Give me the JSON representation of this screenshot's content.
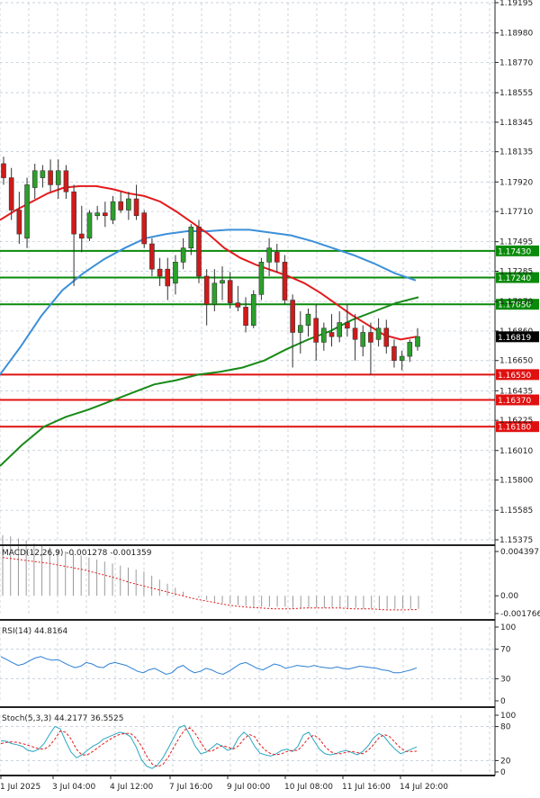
{
  "colors": {
    "bull": "#2ca02c",
    "bear": "#d11a1a",
    "ma_fast": "#e31a1c",
    "ma_mid": "#3c8fd8",
    "ma_slow": "#178a17",
    "level_green": "#0a8a0a",
    "level_red": "#e01010",
    "grid": "#b9c3cf",
    "macd_hist": "#9a9a9a",
    "macd_signal": "#e31a1c",
    "rsi": "#2a7fd4",
    "stoch_k": "#2aa6c0",
    "stoch_d": "#e31a1c"
  },
  "chart_data": [
    {
      "type": "candlestick",
      "panel": "price",
      "y_ticks": [
        "1.19195",
        "1.18980",
        "1.18770",
        "1.18555",
        "1.18345",
        "1.18135",
        "1.17920",
        "1.17710",
        "1.17495",
        "1.17285",
        "1.17070",
        "1.16860",
        "1.16650",
        "1.16435",
        "1.16225",
        "1.16010",
        "1.15800",
        "1.15585",
        "1.15375"
      ],
      "ylim": [
        1.15375,
        1.19195
      ],
      "x_ticks": [
        "1 Jul 2025",
        "3 Jul 04:00",
        "4 Jul 12:00",
        "7 Jul 16:00",
        "9 Jul 00:00",
        "10 Jul 08:00",
        "11 Jul 16:00",
        "14 Jul 20:00"
      ],
      "current_price": "1.16819",
      "levels": [
        {
          "label": "1.17430",
          "value": 1.1743,
          "kind": "resistance"
        },
        {
          "label": "1.17240",
          "value": 1.1724,
          "kind": "resistance"
        },
        {
          "label": "1.17050",
          "value": 1.1705,
          "kind": "resistance"
        },
        {
          "label": "1.16550",
          "value": 1.1655,
          "kind": "support"
        },
        {
          "label": "1.16370",
          "value": 1.1637,
          "kind": "support"
        },
        {
          "label": "1.16180",
          "value": 1.1618,
          "kind": "support"
        }
      ],
      "candles": [
        {
          "o": 1.1805,
          "h": 1.181,
          "l": 1.179,
          "c": 1.1795
        },
        {
          "o": 1.1795,
          "h": 1.1802,
          "l": 1.1765,
          "c": 1.1772
        },
        {
          "o": 1.1772,
          "h": 1.1785,
          "l": 1.1748,
          "c": 1.1755
        },
        {
          "o": 1.1752,
          "h": 1.1795,
          "l": 1.1745,
          "c": 1.179
        },
        {
          "o": 1.1788,
          "h": 1.1805,
          "l": 1.178,
          "c": 1.18
        },
        {
          "o": 1.1795,
          "h": 1.1804,
          "l": 1.1788,
          "c": 1.18
        },
        {
          "o": 1.18,
          "h": 1.1808,
          "l": 1.1785,
          "c": 1.179
        },
        {
          "o": 1.179,
          "h": 1.1808,
          "l": 1.178,
          "c": 1.18
        },
        {
          "o": 1.18,
          "h": 1.1804,
          "l": 1.178,
          "c": 1.1785
        },
        {
          "o": 1.1785,
          "h": 1.179,
          "l": 1.1718,
          "c": 1.1755
        },
        {
          "o": 1.1755,
          "h": 1.1775,
          "l": 1.1742,
          "c": 1.1752
        },
        {
          "o": 1.1752,
          "h": 1.1772,
          "l": 1.175,
          "c": 1.177
        },
        {
          "o": 1.1768,
          "h": 1.1775,
          "l": 1.1765,
          "c": 1.177
        },
        {
          "o": 1.177,
          "h": 1.1778,
          "l": 1.176,
          "c": 1.1768
        },
        {
          "o": 1.1765,
          "h": 1.1782,
          "l": 1.1762,
          "c": 1.1778
        },
        {
          "o": 1.1778,
          "h": 1.1785,
          "l": 1.177,
          "c": 1.1772
        },
        {
          "o": 1.1772,
          "h": 1.1785,
          "l": 1.1765,
          "c": 1.178
        },
        {
          "o": 1.178,
          "h": 1.179,
          "l": 1.1765,
          "c": 1.1768
        },
        {
          "o": 1.177,
          "h": 1.1772,
          "l": 1.1745,
          "c": 1.1748
        },
        {
          "o": 1.1748,
          "h": 1.1752,
          "l": 1.1725,
          "c": 1.173
        },
        {
          "o": 1.173,
          "h": 1.1738,
          "l": 1.1718,
          "c": 1.1725
        },
        {
          "o": 1.173,
          "h": 1.1738,
          "l": 1.1708,
          "c": 1.1718
        },
        {
          "o": 1.172,
          "h": 1.174,
          "l": 1.1712,
          "c": 1.1735
        },
        {
          "o": 1.1735,
          "h": 1.1752,
          "l": 1.173,
          "c": 1.1745
        },
        {
          "o": 1.1745,
          "h": 1.1762,
          "l": 1.174,
          "c": 1.176
        },
        {
          "o": 1.176,
          "h": 1.1765,
          "l": 1.172,
          "c": 1.1725
        },
        {
          "o": 1.1725,
          "h": 1.173,
          "l": 1.169,
          "c": 1.1705
        },
        {
          "o": 1.1705,
          "h": 1.173,
          "l": 1.17,
          "c": 1.172
        },
        {
          "o": 1.172,
          "h": 1.1732,
          "l": 1.1708,
          "c": 1.1722
        },
        {
          "o": 1.1722,
          "h": 1.1728,
          "l": 1.1702,
          "c": 1.1706
        },
        {
          "o": 1.1706,
          "h": 1.1718,
          "l": 1.17,
          "c": 1.1703
        },
        {
          "o": 1.1703,
          "h": 1.171,
          "l": 1.1685,
          "c": 1.169
        },
        {
          "o": 1.169,
          "h": 1.1715,
          "l": 1.1688,
          "c": 1.1712
        },
        {
          "o": 1.1712,
          "h": 1.1738,
          "l": 1.1708,
          "c": 1.1735
        },
        {
          "o": 1.1735,
          "h": 1.1752,
          "l": 1.1725,
          "c": 1.1745
        },
        {
          "o": 1.1742,
          "h": 1.1748,
          "l": 1.1728,
          "c": 1.1735
        },
        {
          "o": 1.1735,
          "h": 1.174,
          "l": 1.1705,
          "c": 1.1708
        },
        {
          "o": 1.1708,
          "h": 1.1712,
          "l": 1.166,
          "c": 1.1685
        },
        {
          "o": 1.1685,
          "h": 1.17,
          "l": 1.167,
          "c": 1.169
        },
        {
          "o": 1.169,
          "h": 1.1702,
          "l": 1.1682,
          "c": 1.1698
        },
        {
          "o": 1.1695,
          "h": 1.1705,
          "l": 1.1665,
          "c": 1.1678
        },
        {
          "o": 1.1678,
          "h": 1.1692,
          "l": 1.1672,
          "c": 1.1688
        },
        {
          "o": 1.1685,
          "h": 1.1698,
          "l": 1.1675,
          "c": 1.1682
        },
        {
          "o": 1.1682,
          "h": 1.17,
          "l": 1.1678,
          "c": 1.1692
        },
        {
          "o": 1.1692,
          "h": 1.1705,
          "l": 1.1682,
          "c": 1.1688
        },
        {
          "o": 1.1688,
          "h": 1.1698,
          "l": 1.1665,
          "c": 1.168
        },
        {
          "o": 1.1675,
          "h": 1.169,
          "l": 1.1668,
          "c": 1.1685
        },
        {
          "o": 1.1685,
          "h": 1.1692,
          "l": 1.1655,
          "c": 1.1678
        },
        {
          "o": 1.168,
          "h": 1.1695,
          "l": 1.1675,
          "c": 1.1688
        },
        {
          "o": 1.1688,
          "h": 1.1694,
          "l": 1.167,
          "c": 1.1675
        },
        {
          "o": 1.1675,
          "h": 1.168,
          "l": 1.166,
          "c": 1.1665
        },
        {
          "o": 1.1665,
          "h": 1.1672,
          "l": 1.1658,
          "c": 1.1668
        },
        {
          "o": 1.1668,
          "h": 1.168,
          "l": 1.1664,
          "c": 1.1678
        },
        {
          "o": 1.1675,
          "h": 1.1688,
          "l": 1.1672,
          "c": 1.1682
        }
      ],
      "ma_fast": [
        1.1765,
        1.1772,
        1.1778,
        1.1784,
        1.1788,
        1.1789,
        1.1789,
        1.1787,
        1.1784,
        1.1782,
        1.1778,
        1.1771,
        1.1763,
        1.1755,
        1.1745,
        1.1738,
        1.1733,
        1.1729,
        1.1725,
        1.172,
        1.1713,
        1.1705,
        1.1697,
        1.169,
        1.1683,
        1.168,
        1.1682
      ],
      "ma_mid": [
        1.1655,
        1.1675,
        1.1697,
        1.1715,
        1.1727,
        1.1737,
        1.1745,
        1.1752,
        1.1755,
        1.1757,
        1.1757,
        1.1758,
        1.1758,
        1.1756,
        1.1754,
        1.175,
        1.1745,
        1.174,
        1.1734,
        1.1727,
        1.1722
      ],
      "ma_slow": [
        1.159,
        1.1605,
        1.1618,
        1.1625,
        1.163,
        1.1636,
        1.1642,
        1.1648,
        1.1651,
        1.1655,
        1.1657,
        1.166,
        1.1665,
        1.1673,
        1.168,
        1.1686,
        1.1694,
        1.17,
        1.1706,
        1.171
      ]
    },
    {
      "type": "bar",
      "panel": "macd",
      "label": "MACD(12,26,9) -0.001278 -0.001359",
      "y_ticks": [
        "0.004397",
        "0.00",
        "-0.001766"
      ],
      "ylim": [
        -0.001766,
        0.004397
      ],
      "histogram": [
        0.006,
        0.0059,
        0.0057,
        0.0055,
        0.0052,
        0.005,
        0.0048,
        0.0046,
        0.0044,
        0.0042,
        0.004,
        0.0038,
        0.0036,
        0.0034,
        0.0032,
        0.003,
        0.0028,
        0.0026,
        0.0024,
        0.002,
        0.0016,
        0.0012,
        0.0008,
        0.0004,
        0.0,
        -0.0002,
        -0.0004,
        -0.0006,
        -0.0007,
        -0.0008,
        -0.0009,
        -0.001,
        -0.0011,
        -0.0011,
        -0.0011,
        -0.0011,
        -0.0011,
        -0.0012,
        -0.0012,
        -0.0012,
        -0.0012,
        -0.0012,
        -0.0012,
        -0.0012,
        -0.0012,
        -0.0012,
        -0.0013,
        -0.0013,
        -0.0013,
        -0.0013,
        -0.0013,
        -0.0013,
        -0.0013,
        -0.0013
      ],
      "signal": [
        0.0038,
        0.0036,
        0.0034,
        0.0032,
        0.0029,
        0.0026,
        0.0022,
        0.0018,
        0.0013,
        0.0009,
        0.0005,
        0.0001,
        -0.0003,
        -0.0006,
        -0.0009,
        -0.0011,
        -0.0012,
        -0.0013,
        -0.0013,
        -0.0012,
        -0.0012,
        -0.0012,
        -0.0013,
        -0.0013,
        -0.0014,
        -0.0014,
        -0.00136
      ]
    },
    {
      "type": "line",
      "panel": "rsi",
      "label": "RSI(14) 44.8164",
      "y_ticks": [
        "100",
        "70",
        "30",
        "0"
      ],
      "ylim": [
        0,
        100
      ],
      "values": [
        60,
        56,
        52,
        48,
        50,
        54,
        58,
        60,
        57,
        55,
        56,
        52,
        48,
        45,
        47,
        52,
        50,
        46,
        45,
        50,
        52,
        50,
        48,
        44,
        40,
        38,
        42,
        44,
        40,
        36,
        38,
        45,
        48,
        42,
        38,
        40,
        44,
        42,
        38,
        36,
        40,
        45,
        50,
        52,
        48,
        44,
        42,
        46,
        50,
        48,
        44,
        46,
        48,
        47,
        46,
        48,
        46,
        45,
        44,
        46,
        44,
        43,
        45,
        47,
        46,
        45,
        44,
        42,
        41,
        38,
        38,
        40,
        42,
        44.8
      ]
    },
    {
      "type": "line",
      "panel": "stoch",
      "label": "Stoch(5,3,3) 44.2177 36.5525",
      "y_ticks": [
        "100",
        "80",
        "20",
        "0"
      ],
      "ylim": [
        0,
        100
      ],
      "k": [
        55,
        54,
        50,
        48,
        45,
        38,
        36,
        40,
        50,
        66,
        80,
        76,
        54,
        35,
        25,
        30,
        38,
        45,
        50,
        58,
        62,
        66,
        70,
        68,
        62,
        45,
        22,
        10,
        6,
        12,
        25,
        42,
        60,
        78,
        82,
        65,
        45,
        32,
        35,
        42,
        50,
        45,
        38,
        42,
        60,
        70,
        62,
        45,
        33,
        30,
        28,
        32,
        38,
        40,
        36,
        45,
        65,
        70,
        55,
        40,
        32,
        30,
        32,
        36,
        38,
        34,
        30,
        36,
        46,
        60,
        68,
        62,
        50,
        40,
        32,
        36,
        40,
        44.2
      ],
      "d": [
        50,
        52,
        53,
        52,
        50,
        47,
        44,
        41,
        40,
        46,
        58,
        72,
        70,
        58,
        40,
        30,
        30,
        36,
        43,
        50,
        56,
        62,
        66,
        68,
        68,
        60,
        46,
        28,
        14,
        9,
        13,
        26,
        43,
        60,
        74,
        78,
        68,
        52,
        38,
        36,
        42,
        46,
        44,
        40,
        46,
        58,
        66,
        62,
        48,
        38,
        32,
        30,
        32,
        36,
        38,
        38,
        48,
        60,
        65,
        58,
        45,
        36,
        32,
        32,
        35,
        36,
        34,
        32,
        38,
        48,
        60,
        66,
        62,
        52,
        42,
        36,
        36,
        36.55
      ]
    }
  ]
}
